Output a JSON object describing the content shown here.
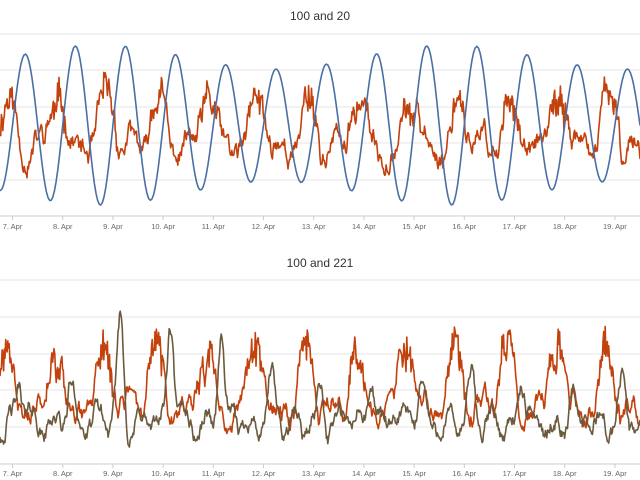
{
  "chart_data": [
    {
      "type": "line",
      "title": "100 and 20",
      "x_tick_labels": [
        "7. Apr",
        "8. Apr",
        "9. Apr",
        "10. Apr",
        "11. Apr",
        "12. Apr",
        "13. Apr",
        "14. Apr",
        "15. Apr",
        "16. Apr",
        "17. Apr",
        "18. Apr",
        "19. Apr"
      ],
      "x_range_days": [
        6.75,
        19.5
      ],
      "grid": true,
      "legend": "none",
      "series": [
        {
          "color": "#c2410c",
          "style": "noisy",
          "base": 0.38,
          "amp": 0.22,
          "period": 1.0,
          "phase": 0.35,
          "noise": 0.09,
          "seed": 11
        },
        {
          "color": "#4a6fa5",
          "style": "smooth",
          "base": 0.5,
          "amp": 0.44,
          "period": 1.0,
          "phase": 0.0,
          "noise": 0.0,
          "seed": 3
        }
      ]
    },
    {
      "type": "line",
      "title": "100 and 221",
      "x_tick_labels": [
        "7. Apr",
        "8. Apr",
        "9. Apr",
        "10. Apr",
        "11. Apr",
        "12. Apr",
        "13. Apr",
        "14. Apr",
        "15. Apr",
        "16. Apr",
        "17. Apr",
        "18. Apr",
        "19. Apr"
      ],
      "x_range_days": [
        6.75,
        19.5
      ],
      "grid": true,
      "legend": "none",
      "series": [
        {
          "color": "#c2410c",
          "style": "noisy",
          "base": 0.3,
          "amp": 0.28,
          "period": 1.0,
          "phase": 0.4,
          "noise": 0.08,
          "seed": 21
        },
        {
          "color": "#6b5a3e",
          "style": "spiky",
          "base": 0.22,
          "amp": 0.16,
          "period": 1.0,
          "phase": 0.1,
          "noise": 0.07,
          "seed": 42
        }
      ]
    }
  ]
}
